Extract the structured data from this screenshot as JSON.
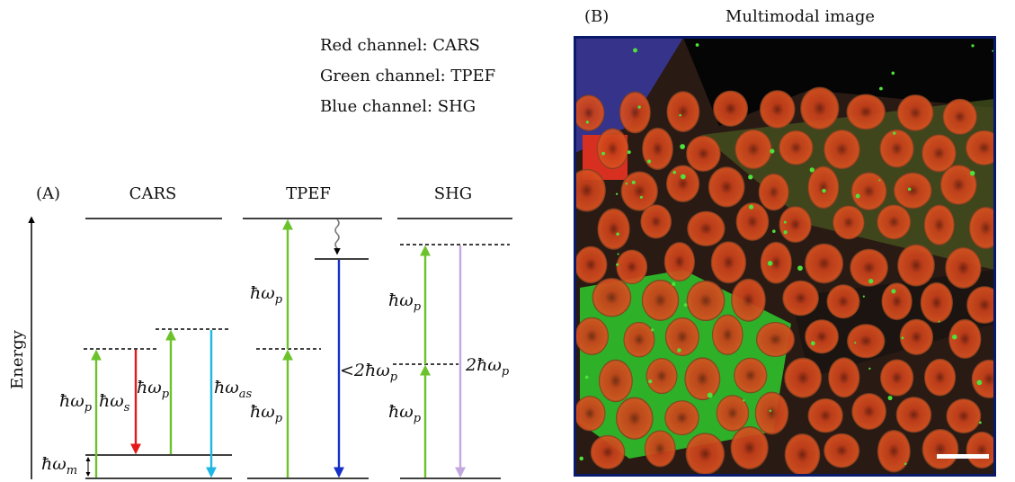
{
  "panel_a": {
    "label": "(A)",
    "axis_label": "Energy",
    "processes": [
      "CARS",
      "TPEF",
      "SHG"
    ],
    "transitions": [
      {
        "text": "ħω",
        "sub": "p"
      },
      {
        "text": "ħω",
        "sub": "s"
      },
      {
        "text": "ħω",
        "sub": "p"
      },
      {
        "text": "ħω",
        "sub": "as"
      },
      {
        "text": "ħω",
        "sub": "m"
      },
      {
        "text": "ħω",
        "sub": "p"
      },
      {
        "text": "ħω",
        "sub": "p"
      },
      {
        "text": "<2ħω",
        "sub": "p"
      },
      {
        "text": "ħω",
        "sub": "p"
      },
      {
        "text": "ħω",
        "sub": "p"
      },
      {
        "text": "2ħω",
        "sub": "p"
      }
    ]
  },
  "legend": {
    "lines": [
      "Red channel: CARS",
      "Green channel: TPEF",
      "Blue channel: SHG"
    ]
  },
  "panel_b": {
    "label": "(B)",
    "title": "Multimodal image"
  }
}
